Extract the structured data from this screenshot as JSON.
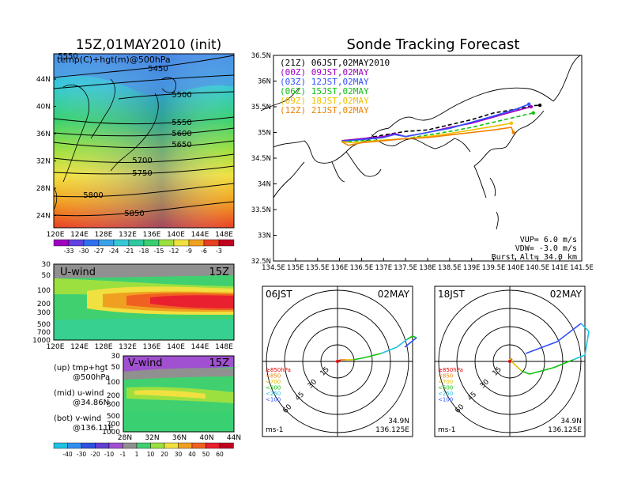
{
  "left_title": "15Z,01MAY2010 (init)",
  "right_title": "Sonde Tracking Forecast",
  "map_panel": {
    "label": "temp(C)+hgt(m)@500hPa",
    "lat_ticks": [
      "44N",
      "40N",
      "36N",
      "32N",
      "28N",
      "24N"
    ],
    "lon_ticks": [
      "120E",
      "124E",
      "128E",
      "132E",
      "136E",
      "140E",
      "144E",
      "148E"
    ],
    "contours": [
      "5550",
      "5450",
      "5500",
      "5550",
      "5600",
      "5650",
      "5700",
      "5750",
      "5800",
      "5850"
    ],
    "temp_colorbar": [
      "-33",
      "-30",
      "-27",
      "-24",
      "-21",
      "-18",
      "-15",
      "-12",
      "-9",
      "-6",
      "-3"
    ]
  },
  "uwind_panel": {
    "label": "U-wind",
    "time": "15Z",
    "pressure_ticks": [
      "30",
      "50",
      "100",
      "200",
      "300",
      "500",
      "700",
      "1000"
    ],
    "lon_ticks": [
      "120E",
      "124E",
      "128E",
      "132E",
      "136E",
      "140E",
      "144E",
      "148E"
    ]
  },
  "vwind_panel": {
    "label": "V-wind",
    "time": "15Z",
    "pressure_ticks": [
      "30",
      "50",
      "100",
      "200",
      "300",
      "500",
      "700",
      "1000"
    ],
    "lat_ticks": [
      "28N",
      "32N",
      "36N",
      "40N",
      "44N"
    ]
  },
  "side_notes": [
    {
      "head": "(up) tmp+hgt",
      "sub": "@500hPa"
    },
    {
      "head": "(mid) u-wind",
      "sub": "@34.86N"
    },
    {
      "head": "(bot) v-wind",
      "sub": "@136.11E"
    }
  ],
  "wind_colorbar": [
    "-40",
    "-30",
    "-20",
    "-10",
    "-1",
    "1",
    "10",
    "20",
    "30",
    "40",
    "50",
    "60"
  ],
  "track_panel": {
    "lat_ticks": [
      "36.5N",
      "36N",
      "35.5N",
      "35N",
      "34.5N",
      "34N",
      "33.5N",
      "33N",
      "32.5N"
    ],
    "lon_ticks": [
      "134.5E",
      "135E",
      "135.5E",
      "136E",
      "136.5E",
      "137E",
      "137.5E",
      "138E",
      "138.5E",
      "139E",
      "139.5E",
      "140E",
      "140.5E",
      "141E",
      "141.5E"
    ],
    "legend": [
      {
        "text": "(21Z) 06JST,02MAY2010",
        "color": "#000000"
      },
      {
        "text": "(00Z) 09JST,02MAY",
        "color": "#a000c0"
      },
      {
        "text": "(03Z) 12JST,02MAY",
        "color": "#3050ff"
      },
      {
        "text": "(06Z) 15JST,02MAY",
        "color": "#10c010"
      },
      {
        "text": "(09Z) 18JST,02MAY",
        "color": "#f0c000"
      },
      {
        "text": "(12Z) 21JST,02MAY",
        "color": "#f08000"
      }
    ],
    "params": [
      "VUP= 6.0 m/s",
      "VDW= -3.0 m/s",
      "Burst Alt= 34.0 km"
    ]
  },
  "polar_left": {
    "time": "06JST",
    "date": "02MAY",
    "lat": "34.9N",
    "lon": "136.125E",
    "unit": "ms-1"
  },
  "polar_right": {
    "time": "18JST",
    "date": "02MAY",
    "lat": "34.9N",
    "lon": "136.125E",
    "unit": "ms-1"
  },
  "polar_rings": [
    "15",
    "30",
    "45",
    "60"
  ],
  "polar_levels": [
    {
      "text": "≥850hPa",
      "color": "#e00000"
    },
    {
      "text": "<850",
      "color": "#f08000"
    },
    {
      "text": "<700",
      "color": "#e0c000"
    },
    {
      "text": "<500",
      "color": "#10c010"
    },
    {
      "text": "<250",
      "color": "#20c0e0"
    },
    {
      "text": "<100",
      "color": "#3050ff"
    }
  ],
  "chart_data": {
    "type": "line",
    "title": "Sonde Tracking Forecast",
    "xlim": [
      134.5,
      141.5
    ],
    "ylim": [
      32.5,
      36.5
    ],
    "series": [
      {
        "name": "(21Z) 06JST,02MAY2010",
        "color": "#000000",
        "points": [
          [
            136.05,
            34.84
          ],
          [
            136.5,
            34.87
          ],
          [
            137.0,
            34.95
          ],
          [
            137.5,
            35.02
          ],
          [
            138.0,
            35.05
          ],
          [
            138.5,
            35.15
          ],
          [
            139.0,
            35.25
          ],
          [
            139.5,
            35.38
          ],
          [
            140.0,
            35.45
          ],
          [
            140.4,
            35.52
          ],
          [
            140.55,
            35.53
          ]
        ]
      },
      {
        "name": "(00Z) 09JST,02MAY",
        "color": "#a000c0",
        "points": [
          [
            136.05,
            34.84
          ],
          [
            136.5,
            34.88
          ],
          [
            137.0,
            34.92
          ],
          [
            137.25,
            34.98
          ],
          [
            137.5,
            34.92
          ],
          [
            138.0,
            35.0
          ],
          [
            138.5,
            35.1
          ],
          [
            139.0,
            35.18
          ],
          [
            139.5,
            35.3
          ],
          [
            140.0,
            35.42
          ],
          [
            140.35,
            35.5
          ]
        ]
      },
      {
        "name": "(03Z) 12JST,02MAY",
        "color": "#3050ff",
        "points": [
          [
            136.05,
            34.83
          ],
          [
            136.5,
            34.86
          ],
          [
            137.0,
            34.9
          ],
          [
            137.25,
            34.96
          ],
          [
            137.5,
            34.92
          ],
          [
            138.0,
            35.0
          ],
          [
            138.5,
            35.08
          ],
          [
            139.0,
            35.2
          ],
          [
            139.5,
            35.32
          ],
          [
            140.0,
            35.45
          ],
          [
            140.3,
            35.55
          ]
        ]
      },
      {
        "name": "(06Z) 15JST,02MAY",
        "color": "#10c010",
        "points": [
          [
            136.05,
            34.82
          ],
          [
            136.5,
            34.84
          ],
          [
            137.0,
            34.85
          ],
          [
            137.5,
            34.88
          ],
          [
            138.0,
            34.95
          ],
          [
            138.5,
            35.02
          ],
          [
            139.0,
            35.1
          ],
          [
            139.5,
            35.2
          ],
          [
            140.0,
            35.3
          ],
          [
            140.4,
            35.38
          ]
        ]
      },
      {
        "name": "(09Z) 18JST,02MAY",
        "color": "#f0c000",
        "points": [
          [
            136.05,
            34.82
          ],
          [
            136.3,
            34.8
          ],
          [
            136.6,
            34.82
          ],
          [
            137.0,
            34.85
          ],
          [
            137.5,
            34.88
          ],
          [
            138.0,
            34.92
          ],
          [
            138.5,
            34.98
          ],
          [
            139.0,
            35.05
          ],
          [
            139.5,
            35.12
          ],
          [
            139.9,
            35.18
          ]
        ]
      },
      {
        "name": "(12Z) 21JST,02MAY",
        "color": "#f08000",
        "points": [
          [
            136.05,
            34.82
          ],
          [
            136.2,
            34.75
          ],
          [
            136.5,
            34.8
          ],
          [
            137.0,
            34.84
          ],
          [
            137.5,
            34.88
          ],
          [
            138.0,
            34.9
          ],
          [
            138.5,
            34.95
          ],
          [
            139.0,
            35.0
          ],
          [
            139.5,
            35.05
          ],
          [
            139.9,
            35.1
          ],
          [
            139.95,
            35.0
          ]
        ]
      }
    ]
  }
}
